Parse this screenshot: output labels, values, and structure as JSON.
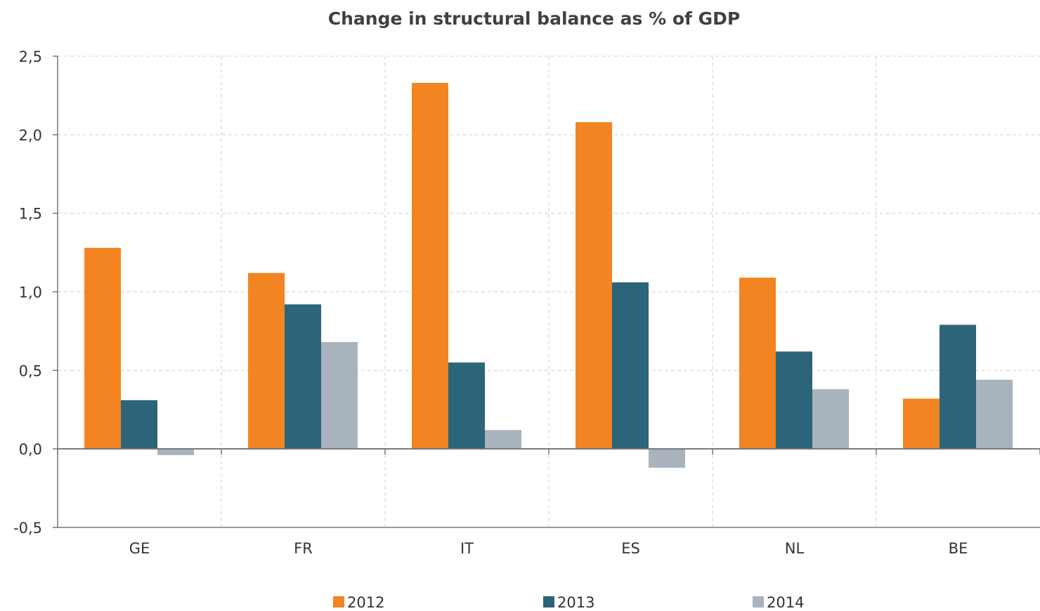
{
  "chart_data": {
    "type": "bar",
    "title": "Change in structural balance as % of GDP",
    "categories": [
      "GE",
      "FR",
      "IT",
      "ES",
      "NL",
      "BE"
    ],
    "series": [
      {
        "name": "2012",
        "values": [
          1.28,
          1.12,
          2.33,
          2.08,
          1.09,
          0.32
        ],
        "color": "#f28421"
      },
      {
        "name": "2013",
        "values": [
          0.31,
          0.92,
          0.55,
          1.06,
          0.62,
          0.79
        ],
        "color": "#2c6479"
      },
      {
        "name": "2014",
        "values": [
          -0.04,
          0.68,
          0.12,
          -0.12,
          0.38,
          0.44
        ],
        "color": "#a8b3be"
      }
    ],
    "ylim": [
      -0.5,
      2.5
    ],
    "yticks": [
      -0.5,
      0.0,
      0.5,
      1.0,
      1.5,
      2.0,
      2.5
    ],
    "ytick_labels": [
      "-0,5",
      "0,0",
      "0,5",
      "1,0",
      "1,5",
      "2,0",
      "2,5"
    ],
    "grid": true,
    "legend_position": "bottom",
    "xlabel": "",
    "ylabel": ""
  }
}
